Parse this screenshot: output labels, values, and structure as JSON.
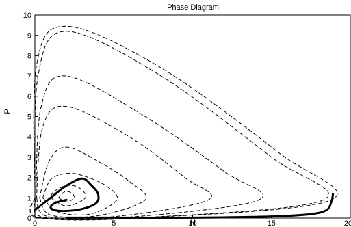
{
  "chart_data": {
    "type": "line",
    "title": "Phase Diagram",
    "xlabel": "H",
    "ylabel": "P",
    "xlim": [
      0,
      20
    ],
    "ylim": [
      0,
      10
    ],
    "xticks": [
      "0",
      "5",
      "10",
      "15",
      "20"
    ],
    "yticks": [
      "0",
      "1",
      "2",
      "3",
      "4",
      "5",
      "6",
      "7",
      "8",
      "9",
      "10"
    ],
    "grid": false,
    "series": [
      {
        "style": "dashed",
        "x": [
          1.5,
          2.0,
          2.5,
          2.3,
          1.9,
          1.5
        ],
        "y": [
          1.0,
          0.8,
          1.0,
          1.25,
          1.3,
          1.0
        ]
      },
      {
        "style": "dashed",
        "x": [
          1.0,
          2.0,
          3.2,
          2.8,
          2.0,
          1.2,
          1.0
        ],
        "y": [
          1.0,
          0.6,
          1.0,
          1.5,
          1.6,
          1.3,
          1.0
        ]
      },
      {
        "style": "dashed",
        "x": [
          0.5,
          1.5,
          3.5,
          5.2,
          4.5,
          3.0,
          2.0,
          1.0,
          0.5
        ],
        "y": [
          1.0,
          0.3,
          0.2,
          0.9,
          1.6,
          2.1,
          2.2,
          1.9,
          1.0
        ]
      },
      {
        "style": "dashed",
        "x": [
          0.3,
          1.0,
          4.0,
          7.0,
          6.0,
          4.0,
          2.0,
          0.9,
          0.3
        ],
        "y": [
          1.0,
          0.15,
          0.12,
          0.9,
          1.8,
          2.8,
          3.5,
          2.8,
          1.0
        ]
      },
      {
        "style": "dashed",
        "x": [
          0.1,
          0.8,
          5.0,
          11.0,
          9.5,
          6.0,
          2.0,
          0.5,
          0.1
        ],
        "y": [
          1.0,
          0.08,
          0.07,
          0.9,
          2.0,
          4.0,
          5.5,
          4.5,
          1.0
        ]
      },
      {
        "style": "dashed",
        "x": [
          0.05,
          0.5,
          6.0,
          14.2,
          12.0,
          7.0,
          2.0,
          0.4,
          0.05
        ],
        "y": [
          1.0,
          0.05,
          0.05,
          0.9,
          2.3,
          5.0,
          7.0,
          5.5,
          1.0
        ]
      },
      {
        "style": "dashed",
        "x": [
          0.0,
          0.3,
          7.0,
          18.3,
          15.0,
          8.0,
          2.0,
          0.2,
          0.0
        ],
        "y": [
          1.0,
          0.03,
          0.03,
          0.9,
          3.0,
          7.0,
          9.2,
          7.0,
          1.0
        ]
      },
      {
        "style": "dashed",
        "x": [
          0.0,
          0.2,
          7.0,
          18.8,
          15.5,
          8.0,
          2.0,
          0.1,
          0.0
        ],
        "y": [
          1.0,
          0.02,
          0.02,
          0.9,
          3.2,
          7.4,
          9.45,
          7.5,
          1.0
        ]
      },
      {
        "style": "solid",
        "x": [
          0.0,
          1.0,
          2.0,
          3.0,
          3.6,
          4.0,
          3.9,
          3.0,
          1.9,
          1.2,
          1.0,
          1.3,
          2.0
        ],
        "y": [
          0.4,
          1.0,
          1.6,
          1.95,
          1.6,
          1.2,
          0.75,
          0.45,
          0.35,
          0.4,
          0.55,
          0.75,
          0.9
        ]
      },
      {
        "style": "solid",
        "x": [
          2.0,
          5.0,
          10.0,
          15.0,
          17.5,
          18.5,
          18.8,
          18.9
        ],
        "y": [
          0.02,
          0.02,
          0.02,
          0.08,
          0.2,
          0.4,
          0.8,
          1.2
        ]
      }
    ]
  }
}
